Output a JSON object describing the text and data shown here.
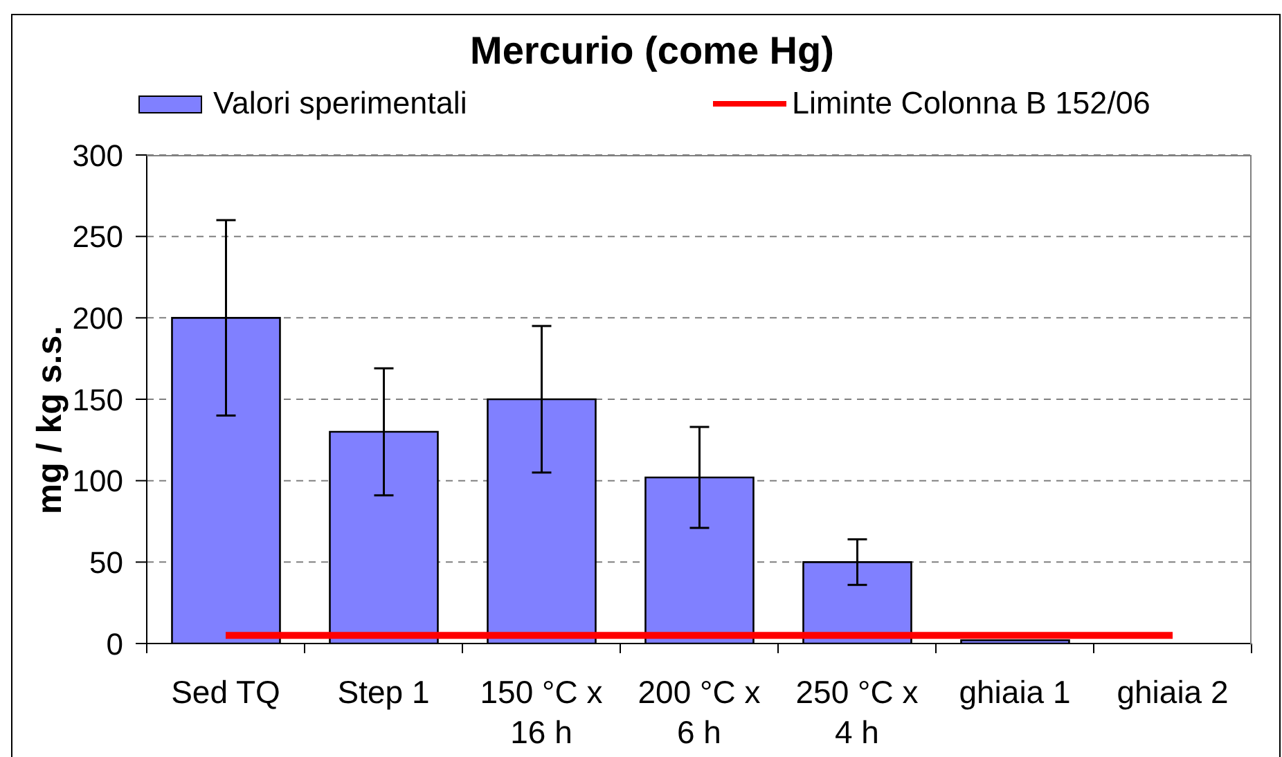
{
  "chart_data": {
    "type": "bar",
    "title": "Mercurio (come Hg)",
    "ylabel": "mg / kg s.s.",
    "categories": [
      "Sed TQ",
      "Step 1",
      "150 °C x 16 h",
      "200 °C x 6 h",
      "250 °C x 4 h",
      "ghiaia 1",
      "ghiaia 2"
    ],
    "series": [
      {
        "name": "Valori sperimentali",
        "color": "#8080ff",
        "values": [
          200,
          130,
          150,
          102,
          50,
          2,
          0
        ],
        "errors": [
          60,
          39,
          45,
          31,
          14,
          null,
          null
        ]
      },
      {
        "name": "Liminte Colonna B 152/06",
        "type": "line",
        "color": "#ff0000",
        "values": [
          5,
          5,
          5,
          5,
          5,
          5,
          5
        ]
      }
    ],
    "ylim": [
      0,
      300
    ],
    "yticks": [
      0,
      50,
      100,
      150,
      200,
      250,
      300
    ],
    "grid": "y",
    "legend": "top"
  }
}
